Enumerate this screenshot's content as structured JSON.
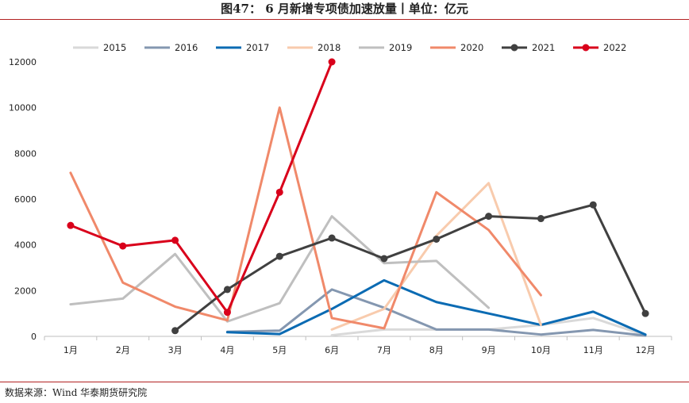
{
  "title": "图47： 6 月新增专项债加速放量丨单位：亿元",
  "source": "数据来源：Wind  华泰期货研究院",
  "chart_data": {
    "type": "line",
    "categories": [
      "1月",
      "2月",
      "3月",
      "4月",
      "5月",
      "6月",
      "7月",
      "8月",
      "9月",
      "10月",
      "11月",
      "12月"
    ],
    "ylim": [
      0,
      12000
    ],
    "yticks": [
      "0",
      "2000",
      "4000",
      "6000",
      "8000",
      "10000",
      "12000"
    ],
    "legend_position": "top",
    "grid": false,
    "series": [
      {
        "name": "2015",
        "color": "#d9d9d9",
        "markers": false,
        "values": [
          null,
          null,
          null,
          null,
          null,
          50,
          300,
          300,
          300,
          500,
          800,
          50
        ]
      },
      {
        "name": "2016",
        "color": "#8497b0",
        "markers": false,
        "values": [
          null,
          null,
          null,
          200,
          250,
          2050,
          1250,
          300,
          300,
          80,
          280,
          30
        ]
      },
      {
        "name": "2017",
        "color": "#0b6bb3",
        "markers": false,
        "values": [
          null,
          null,
          null,
          180,
          100,
          1200,
          2450,
          1500,
          1000,
          500,
          1080,
          80
        ]
      },
      {
        "name": "2018",
        "color": "#f8cbad",
        "markers": false,
        "values": [
          null,
          null,
          null,
          null,
          null,
          300,
          1200,
          4400,
          6700,
          500,
          null,
          null
        ]
      },
      {
        "name": "2019",
        "color": "#bfbfbf",
        "markers": false,
        "values": [
          1400,
          1650,
          3600,
          650,
          1450,
          5250,
          3200,
          3300,
          1250,
          null,
          null,
          null
        ]
      },
      {
        "name": "2020",
        "color": "#f0896a",
        "markers": false,
        "values": [
          7150,
          2350,
          1300,
          700,
          10000,
          800,
          350,
          6300,
          4650,
          1800,
          null,
          null
        ]
      },
      {
        "name": "2021",
        "color": "#404040",
        "markers": true,
        "values": [
          null,
          null,
          250,
          2050,
          3500,
          4300,
          3400,
          4250,
          5250,
          5150,
          5750,
          1000
        ]
      },
      {
        "name": "2022",
        "color": "#d9001b",
        "markers": true,
        "values": [
          4850,
          3950,
          4200,
          1050,
          6300,
          12000,
          null,
          null,
          null,
          null,
          null,
          null
        ]
      }
    ]
  }
}
